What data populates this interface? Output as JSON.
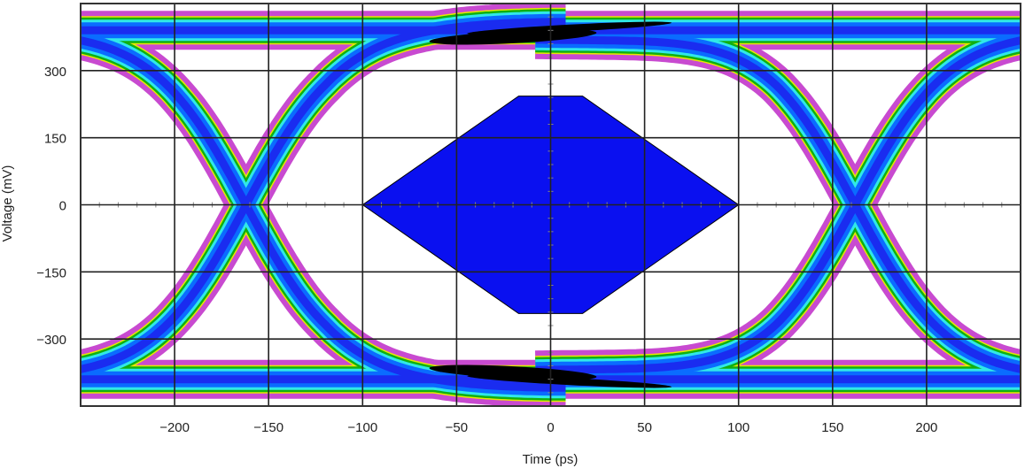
{
  "chart_data": {
    "type": "eye-diagram",
    "xlabel": "Time (ps)",
    "ylabel": "Voltage (mV)",
    "xlim": [
      -250,
      250
    ],
    "ylim": [
      -450,
      450
    ],
    "grid": true,
    "x_ticks": [
      -200,
      -150,
      -100,
      -50,
      0,
      50,
      100,
      150,
      200
    ],
    "x_tick_labels": [
      "−200",
      "−150",
      "−100",
      "−50",
      "0",
      "50",
      "100",
      "150",
      "200"
    ],
    "y_ticks": [
      300,
      150,
      0,
      -150,
      -300
    ],
    "y_tick_labels": [
      "300",
      "150",
      "0",
      "−150",
      "−300"
    ],
    "crossings_ps": [
      -162,
      162
    ],
    "rail_levels_mV": [
      390,
      -390
    ],
    "mask": {
      "color": "#0a10f0",
      "vertices": [
        [
          -100,
          0
        ],
        [
          -17,
          243
        ],
        [
          17,
          243
        ],
        [
          100,
          0
        ],
        [
          17,
          -243
        ],
        [
          -17,
          -243
        ]
      ]
    },
    "density_colors": [
      "#c84ad0",
      "#e8e800",
      "#10b010",
      "#30e8e8",
      "#0a6cff",
      "#1a2cf0"
    ]
  }
}
